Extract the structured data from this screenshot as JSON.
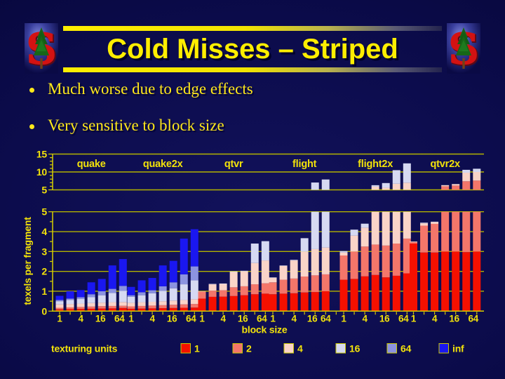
{
  "slide": {
    "title": "Cold Misses – Striped",
    "bullets": [
      "Much worse due to edge effects",
      "Very sensitive to block size"
    ]
  },
  "chart_data": {
    "type": "bar",
    "title": "",
    "xlabel": "block size",
    "ylabel": "texels per fragment",
    "legend_title": "texturing units",
    "axis_note": "broken y-axis: top panel 5-15, bottom panel 0-5",
    "block_sizes": [
      1,
      2,
      4,
      8,
      16,
      32,
      64
    ],
    "x_tick_labels": [
      "1",
      "4",
      "16",
      "64"
    ],
    "top_panel_ticks": [
      5,
      10,
      15
    ],
    "bottom_panel_ticks": [
      0,
      1,
      2,
      3,
      4,
      5
    ],
    "units": [
      "1",
      "2",
      "4",
      "16",
      "64",
      "inf"
    ],
    "unit_colors": [
      "#f51000",
      "#f4766a",
      "#fad4c8",
      "#d6d9f2",
      "#8c93e0",
      "#1a17f0"
    ],
    "groups": [
      {
        "name": "quake",
        "values": [
          [
            0.09,
            0.17,
            0.34,
            0.5,
            0.56,
            0.77
          ],
          [
            0.1,
            0.19,
            0.36,
            0.56,
            0.63,
            1.0
          ],
          [
            0.11,
            0.21,
            0.38,
            0.61,
            0.7,
            1.06
          ],
          [
            0.12,
            0.23,
            0.41,
            0.7,
            0.85,
            1.45
          ],
          [
            0.13,
            0.25,
            0.43,
            0.8,
            1.0,
            1.62
          ],
          [
            0.14,
            0.26,
            0.45,
            0.92,
            1.12,
            2.3
          ],
          [
            0.16,
            0.27,
            0.46,
            1.02,
            1.27,
            2.62
          ]
        ]
      },
      {
        "name": "quake2x",
        "values": [
          [
            0.12,
            0.24,
            0.42,
            0.72,
            0.8,
            1.22
          ],
          [
            0.13,
            0.26,
            0.45,
            0.8,
            0.95,
            1.55
          ],
          [
            0.14,
            0.28,
            0.47,
            0.9,
            1.05,
            1.67
          ],
          [
            0.15,
            0.3,
            0.5,
            1.02,
            1.25,
            2.3
          ],
          [
            0.16,
            0.32,
            0.53,
            1.15,
            1.45,
            2.53
          ],
          [
            0.17,
            0.34,
            0.56,
            1.35,
            1.85,
            3.65
          ],
          [
            0.18,
            0.36,
            0.6,
            1.55,
            2.25,
            4.12
          ]
        ]
      },
      {
        "name": "qtvr",
        "values": [
          [
            0.63,
            0.98,
            1.0,
            1.0,
            1.0,
            1.0
          ],
          [
            0.72,
            1.03,
            1.35,
            1.37,
            1.37,
            1.37
          ],
          [
            0.73,
            1.05,
            1.37,
            1.39,
            1.39,
            1.39
          ],
          [
            0.76,
            1.2,
            1.97,
            2.0,
            2.0,
            2.0
          ],
          [
            0.8,
            1.25,
            2.0,
            2.03,
            2.03,
            2.03
          ],
          [
            0.85,
            1.35,
            2.42,
            3.4,
            3.4,
            3.4
          ],
          [
            0.88,
            1.4,
            2.55,
            3.52,
            3.52,
            3.52
          ]
        ]
      },
      {
        "name": "flight",
        "values": [
          [
            0.85,
            1.45,
            1.68,
            1.7,
            1.7,
            1.7
          ],
          [
            0.88,
            1.58,
            2.28,
            2.3,
            2.3,
            2.3
          ],
          [
            0.9,
            1.64,
            2.55,
            2.58,
            2.58,
            2.58
          ],
          [
            0.94,
            1.74,
            3.0,
            3.67,
            3.67,
            3.67
          ],
          [
            0.96,
            1.8,
            3.12,
            7.05,
            7.05,
            7.05
          ],
          [
            1.0,
            1.85,
            3.2,
            7.9,
            7.9,
            7.9
          ],
          null
        ]
      },
      {
        "name": "flight2x",
        "values": [
          [
            1.58,
            2.8,
            2.95,
            3.02,
            3.02,
            3.02
          ],
          [
            1.62,
            3.0,
            3.8,
            4.1,
            4.1,
            4.1
          ],
          [
            1.75,
            3.25,
            4.2,
            4.4,
            4.4,
            4.4
          ],
          [
            1.82,
            3.35,
            5.9,
            6.3,
            6.3,
            6.3
          ],
          [
            1.7,
            3.3,
            5.6,
            6.9,
            6.9,
            6.9
          ],
          [
            1.78,
            3.4,
            6.7,
            10.5,
            10.5,
            10.5
          ],
          [
            1.9,
            3.65,
            7.0,
            12.4,
            12.4,
            12.4
          ]
        ]
      },
      {
        "name": "qtvr2x",
        "values": [
          [
            3.4,
            3.47,
            3.5,
            3.5,
            3.5,
            3.5
          ],
          [
            2.95,
            4.3,
            4.42,
            4.45,
            4.45,
            4.45
          ],
          [
            2.95,
            4.39,
            4.48,
            4.5,
            4.5,
            4.5
          ],
          [
            3.0,
            6.0,
            6.3,
            6.32,
            6.32,
            6.32
          ],
          [
            3.0,
            6.2,
            6.6,
            6.62,
            6.62,
            6.62
          ],
          [
            2.97,
            7.4,
            9.8,
            10.6,
            10.6,
            10.6
          ],
          [
            3.0,
            7.6,
            10.0,
            10.9,
            10.9,
            10.9
          ]
        ]
      }
    ]
  }
}
